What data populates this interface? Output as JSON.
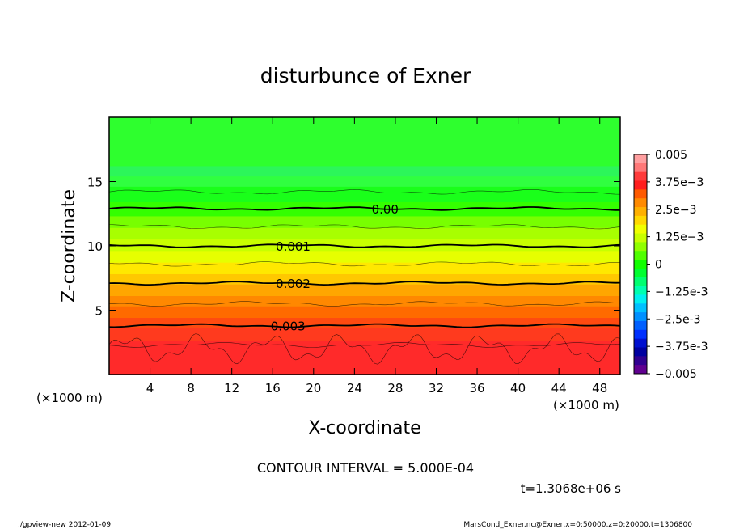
{
  "chart_data": {
    "type": "heatmap",
    "title": "disturbunce of Exner",
    "xlabel": "X-coordinate",
    "ylabel": "Z-coordinate",
    "x_unit": "(×1000 m)",
    "y_unit": "(×1000 m)",
    "xlim": [
      0,
      50
    ],
    "ylim": [
      0,
      20
    ],
    "x_ticks": [
      4,
      8,
      12,
      16,
      20,
      24,
      28,
      32,
      36,
      40,
      44,
      48
    ],
    "y_ticks": [
      5,
      10,
      15
    ],
    "colorbar": {
      "min": -0.005,
      "max": 0.005,
      "labels": [
        "0.005",
        "3.75e-3",
        "2.5e-3",
        "1.25e-3",
        "0",
        "-1.25e-3",
        "-2.5e-3",
        "-3.75e-3",
        "-0.005"
      ],
      "colors": [
        "#ff9fa0",
        "#ff7878",
        "#ff3a3a",
        "#ff1e1e",
        "#ff5a00",
        "#ff8a00",
        "#ffb000",
        "#ffd800",
        "#f0ff00",
        "#c8ff00",
        "#90ff00",
        "#50ff00",
        "#10ff00",
        "#00ff30",
        "#00ff70",
        "#00ffb0",
        "#00f0f0",
        "#00c0ff",
        "#0090ff",
        "#0060ff",
        "#0030ff",
        "#0010d0",
        "#0000a0",
        "#300090",
        "#600090"
      ]
    },
    "contours": [
      {
        "level": 0.0,
        "label": "0.00",
        "z": 12.9,
        "x_label": 27
      },
      {
        "level": 0.001,
        "label": "0.001",
        "z": 10.0,
        "x_label": 18
      },
      {
        "level": 0.002,
        "label": "0.002",
        "z": 7.1,
        "x_label": 18
      },
      {
        "level": 0.003,
        "label": "0.003",
        "z": 3.8,
        "x_label": 17.5
      }
    ],
    "contour_interval_text": "CONTOUR INTERVAL = 5.000E-04",
    "time_text": "t=1.3068e+06 s"
  },
  "footer": {
    "left": "./gpview-new  2012-01-09",
    "right": "MarsCond_Exner.nc@Exner,x=0:50000,z=0:20000,t=1306800"
  }
}
